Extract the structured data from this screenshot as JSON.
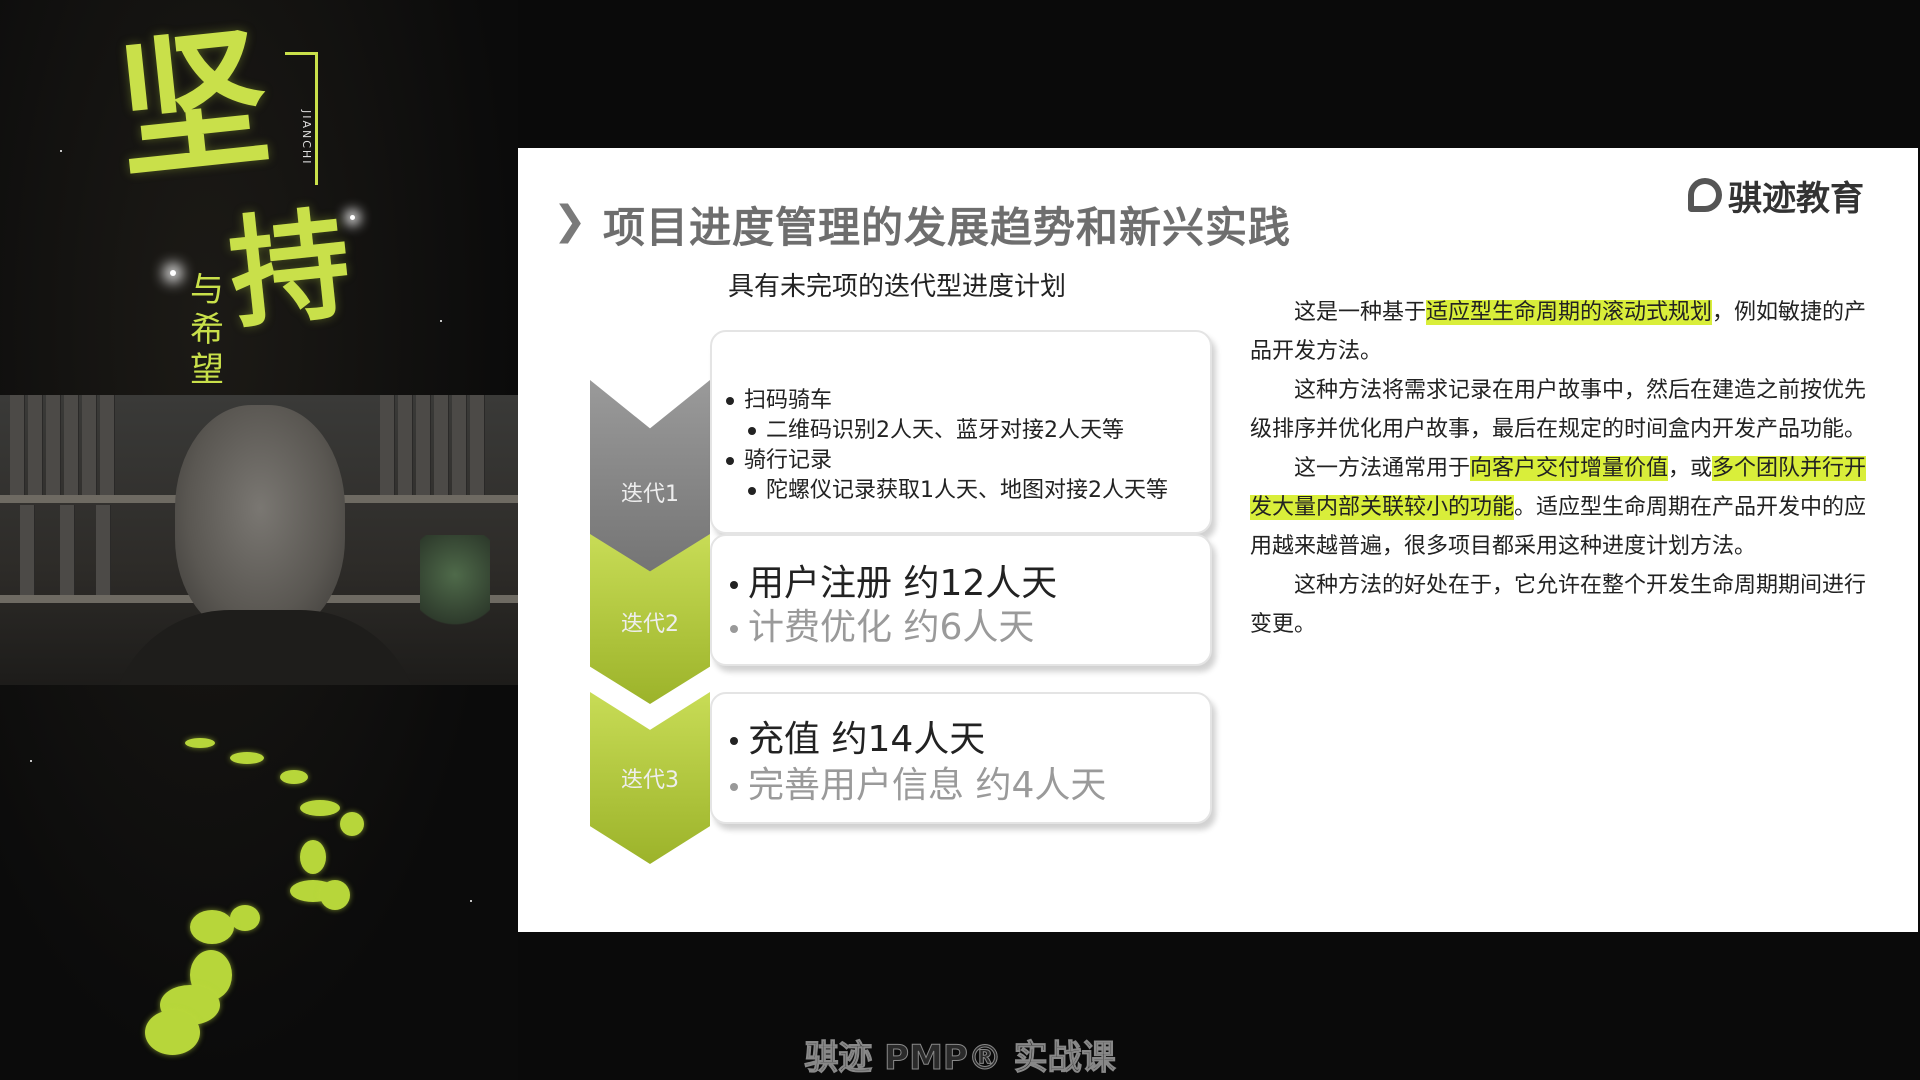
{
  "poster": {
    "big_char_1": "坚",
    "big_char_2": "持",
    "small_text": "与希望",
    "pinyin": "JIANCHI"
  },
  "slide": {
    "title": "项目进度管理的发展趋势和新兴实践",
    "logo_text": "骐迹教育",
    "diagram_subtitle": "具有未完项的迭代型进度计划",
    "iterations": [
      {
        "label": "迭代1",
        "items": [
          {
            "text": "扫码骑车",
            "level": 1
          },
          {
            "text": "二维码识别2人天、蓝牙对接2人天等",
            "level": 2
          },
          {
            "text": "骑行记录",
            "level": 1
          },
          {
            "text": "陀螺仪记录获取1人天、地图对接2人天等",
            "level": 2
          }
        ]
      },
      {
        "label": "迭代2",
        "items": [
          {
            "text": "用户注册 约12人天",
            "style": "primary"
          },
          {
            "text": "计费优化 约6人天",
            "style": "secondary"
          }
        ]
      },
      {
        "label": "迭代3",
        "items": [
          {
            "text": "充值 约14人天",
            "style": "primary"
          },
          {
            "text": "完善用户信息 约4人天",
            "style": "secondary"
          }
        ]
      }
    ],
    "paragraphs": [
      {
        "pre": "这是一种基于",
        "hl": "适应型生命周期的滚动式规划",
        "post": "，例如敏捷的产品开发方法。"
      },
      {
        "text": "这种方法将需求记录在用户故事中，然后在建造之前按优先级排序并优化用户故事，最后在规定的时间盒内开发产品功能。"
      },
      {
        "pre": "这一方法通常用于",
        "hl1": "向客户交付增量价值",
        "mid": "，或",
        "hl2": "多个团队并行开发大量内部关联较小的功能",
        "post": "。适应型生命周期在产品开发中的应用越来越普遍，很多项目都采用这种进度计划方法。"
      },
      {
        "text": "这种方法的好处在于，它允许在整个开发生命周期期间进行变更。"
      }
    ]
  },
  "caption": "骐迹 PMP® 实战课",
  "colors": {
    "accent_green": "#d9ee3a",
    "chevron_1": "#8a8a8a",
    "chevron_2": "#b6cd3a",
    "chevron_3": "#b6cd3a"
  }
}
